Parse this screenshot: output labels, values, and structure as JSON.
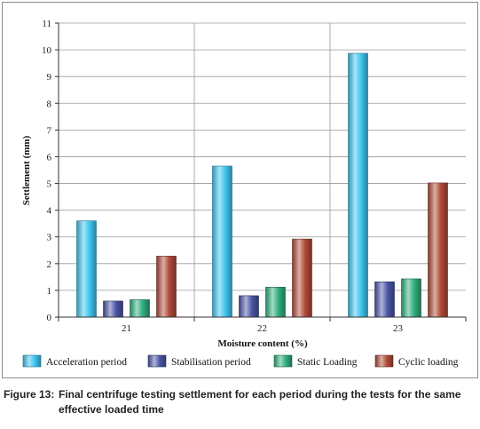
{
  "chart_data": {
    "type": "bar",
    "title": "",
    "xlabel": "Moisture content (%)",
    "ylabel": "Settlement (mm)",
    "categories": [
      "21",
      "22",
      "23"
    ],
    "ylim": [
      0,
      11
    ],
    "yticks": [
      0,
      1,
      2,
      3,
      4,
      5,
      6,
      7,
      8,
      9,
      10,
      11
    ],
    "grid": true,
    "legend_position": "bottom",
    "series": [
      {
        "name": "Acceleration period",
        "color": "#3fc6f0",
        "values": [
          3.6,
          5.65,
          9.87
        ]
      },
      {
        "name": "Stabilisation period",
        "color": "#4a55a6",
        "values": [
          0.6,
          0.8,
          1.32
        ]
      },
      {
        "name": "Static Loading",
        "color": "#2fae7e",
        "values": [
          0.65,
          1.12,
          1.43
        ]
      },
      {
        "name": "Cyclic loading",
        "color": "#b04a38",
        "values": [
          2.28,
          2.92,
          5.02
        ]
      }
    ]
  },
  "caption": {
    "label": "Figure 13:",
    "text": "Final centrifuge testing settlement for each period during the tests for the same effective loaded time"
  }
}
